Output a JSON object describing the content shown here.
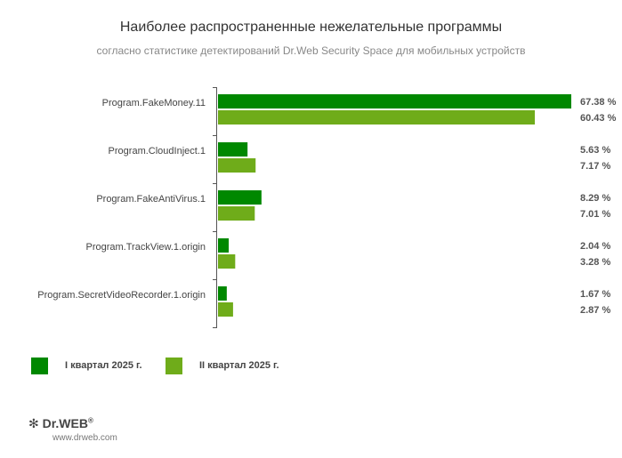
{
  "chart_data": {
    "type": "bar",
    "orientation": "horizontal",
    "title": "Наиболее распространенные нежелательные программы",
    "subtitle": "согласно статистике детектирований Dr.Web Security Space для мобильных устройств",
    "categories": [
      "Program.FakeMoney.11",
      "Program.CloudInject.1",
      "Program.FakeAntiVirus.1",
      "Program.TrackView.1.origin",
      "Program.SecretVideoRecorder.1.origin"
    ],
    "series": [
      {
        "name": "I квартал 2025 г.",
        "color": "#008800",
        "values": [
          67.38,
          5.63,
          8.29,
          2.04,
          1.67
        ],
        "labels": [
          "67.38 %",
          "5.63 %",
          "8.29 %",
          "2.04 %",
          "1.67 %"
        ]
      },
      {
        "name": "II квартал 2025 г.",
        "color": "#6fac1a",
        "values": [
          60.43,
          7.17,
          7.01,
          3.28,
          2.87
        ],
        "labels": [
          "60.43 %",
          "7.17 %",
          "7.01 %",
          "3.28 %",
          "2.87 %"
        ]
      }
    ],
    "grid": false,
    "legend_position": "bottom-left"
  },
  "footer": {
    "logo_text": "Dr.WEB",
    "url": "www.drweb.com"
  }
}
